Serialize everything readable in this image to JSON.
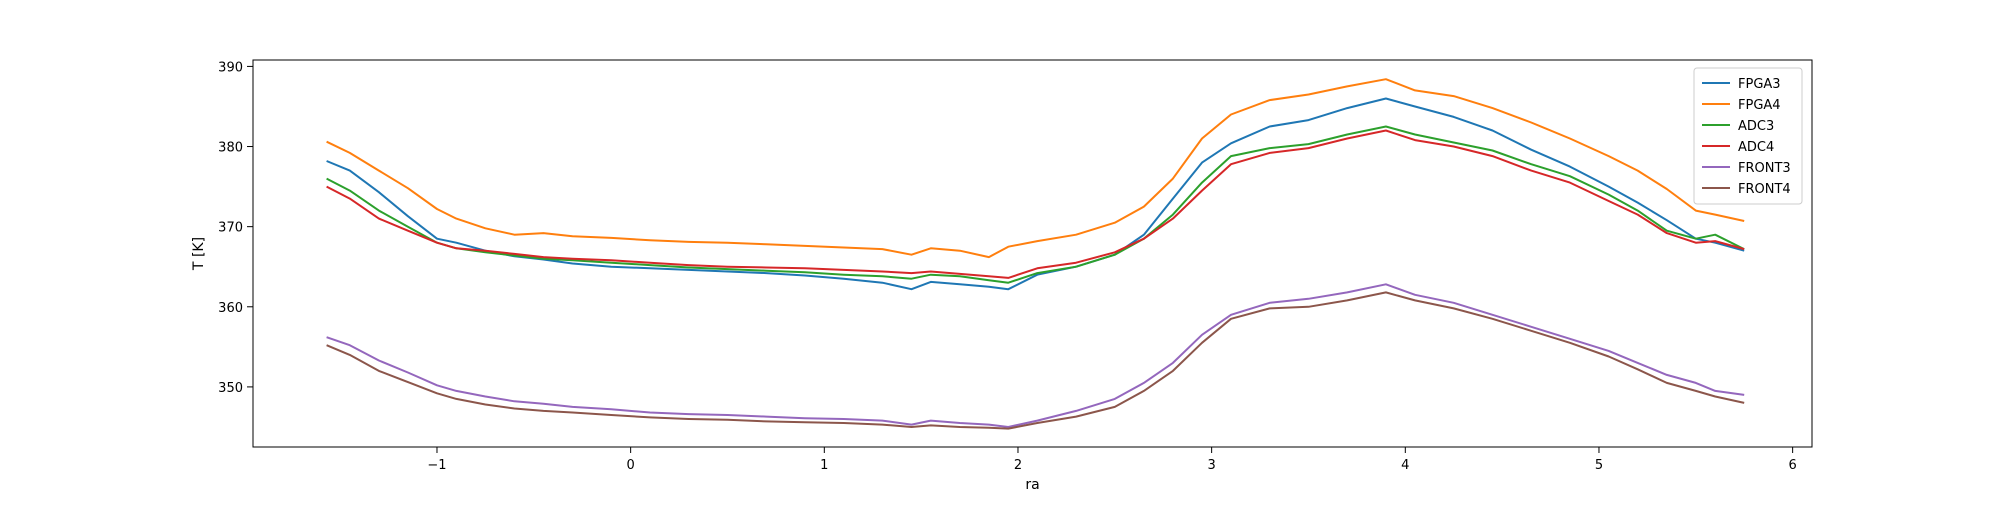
{
  "chart_data": {
    "type": "line",
    "xlabel": "ra",
    "ylabel": "T [K]",
    "xlim": [
      -1.95,
      6.1
    ],
    "ylim": [
      342.5,
      390.8
    ],
    "xticks": [
      -1,
      0,
      1,
      2,
      3,
      4,
      5,
      6
    ],
    "xtick_labels": [
      "−1",
      "0",
      "1",
      "2",
      "3",
      "4",
      "5",
      "6"
    ],
    "yticks": [
      350,
      360,
      370,
      380,
      390
    ],
    "ytick_labels": [
      "350",
      "360",
      "370",
      "380",
      "390"
    ],
    "grid": false,
    "legend": {
      "position": "top-right"
    },
    "series": [
      {
        "name": "FPGA3",
        "color": "#1f77b4",
        "x": [
          -1.57,
          -1.45,
          -1.3,
          -1.15,
          -1.0,
          -0.9,
          -0.75,
          -0.6,
          -0.45,
          -0.3,
          -0.1,
          0.1,
          0.3,
          0.5,
          0.7,
          0.9,
          1.1,
          1.3,
          1.45,
          1.55,
          1.7,
          1.85,
          1.95,
          2.1,
          2.3,
          2.5,
          2.65,
          2.8,
          2.95,
          3.1,
          3.3,
          3.5,
          3.7,
          3.9,
          4.05,
          4.25,
          4.45,
          4.65,
          4.85,
          5.05,
          5.2,
          5.35,
          5.5,
          5.6,
          5.75
        ],
        "y": [
          378.2,
          377.0,
          374.3,
          371.3,
          368.5,
          368.0,
          367.0,
          366.3,
          365.9,
          365.4,
          365.0,
          364.8,
          364.6,
          364.4,
          364.2,
          363.9,
          363.5,
          363.0,
          362.2,
          363.1,
          362.8,
          362.5,
          362.2,
          364.0,
          365.0,
          366.5,
          369.0,
          373.5,
          378.0,
          380.4,
          382.5,
          383.3,
          384.8,
          386.0,
          385.0,
          383.7,
          382.0,
          379.6,
          377.5,
          375.0,
          373.0,
          370.8,
          368.5,
          368.0,
          367.0
        ]
      },
      {
        "name": "FPGA4",
        "color": "#ff7f0e",
        "x": [
          -1.57,
          -1.45,
          -1.3,
          -1.15,
          -1.0,
          -0.9,
          -0.75,
          -0.6,
          -0.45,
          -0.3,
          -0.1,
          0.1,
          0.3,
          0.5,
          0.7,
          0.9,
          1.1,
          1.3,
          1.45,
          1.55,
          1.7,
          1.85,
          1.95,
          2.1,
          2.3,
          2.5,
          2.65,
          2.8,
          2.95,
          3.1,
          3.3,
          3.5,
          3.7,
          3.9,
          4.05,
          4.25,
          4.45,
          4.65,
          4.85,
          5.05,
          5.2,
          5.35,
          5.5,
          5.6,
          5.75
        ],
        "y": [
          380.6,
          379.2,
          377.0,
          374.8,
          372.2,
          371.0,
          369.8,
          369.0,
          369.2,
          368.8,
          368.6,
          368.3,
          368.1,
          368.0,
          367.8,
          367.6,
          367.4,
          367.2,
          366.5,
          367.3,
          367.0,
          366.2,
          367.5,
          368.2,
          369.0,
          370.5,
          372.5,
          376.0,
          381.0,
          384.0,
          385.8,
          386.5,
          387.5,
          388.4,
          387.0,
          386.3,
          384.8,
          383.0,
          381.0,
          378.8,
          377.0,
          374.7,
          372.0,
          371.5,
          370.7
        ]
      },
      {
        "name": "ADC3",
        "color": "#2ca02c",
        "x": [
          -1.57,
          -1.45,
          -1.3,
          -1.15,
          -1.0,
          -0.9,
          -0.75,
          -0.6,
          -0.45,
          -0.3,
          -0.1,
          0.1,
          0.3,
          0.5,
          0.7,
          0.9,
          1.1,
          1.3,
          1.45,
          1.55,
          1.7,
          1.85,
          1.95,
          2.1,
          2.3,
          2.5,
          2.65,
          2.8,
          2.95,
          3.1,
          3.3,
          3.5,
          3.7,
          3.9,
          4.05,
          4.25,
          4.45,
          4.65,
          4.85,
          5.05,
          5.2,
          5.35,
          5.5,
          5.6,
          5.75
        ],
        "y": [
          376.0,
          374.5,
          372.0,
          370.0,
          368.0,
          367.3,
          366.8,
          366.4,
          366.0,
          365.8,
          365.5,
          365.2,
          364.9,
          364.7,
          364.5,
          364.3,
          364.0,
          363.8,
          363.5,
          364.0,
          363.8,
          363.3,
          363.0,
          364.2,
          365.0,
          366.5,
          368.5,
          371.5,
          375.5,
          378.8,
          379.8,
          380.3,
          381.5,
          382.5,
          381.5,
          380.5,
          379.5,
          377.8,
          376.3,
          374.0,
          372.0,
          369.5,
          368.5,
          369.0,
          367.2
        ]
      },
      {
        "name": "ADC4",
        "color": "#d62728",
        "x": [
          -1.57,
          -1.45,
          -1.3,
          -1.15,
          -1.0,
          -0.9,
          -0.75,
          -0.6,
          -0.45,
          -0.3,
          -0.1,
          0.1,
          0.3,
          0.5,
          0.7,
          0.9,
          1.1,
          1.3,
          1.45,
          1.55,
          1.7,
          1.85,
          1.95,
          2.1,
          2.3,
          2.5,
          2.65,
          2.8,
          2.95,
          3.1,
          3.3,
          3.5,
          3.7,
          3.9,
          4.05,
          4.25,
          4.45,
          4.65,
          4.85,
          5.05,
          5.2,
          5.35,
          5.5,
          5.6,
          5.75
        ],
        "y": [
          375.0,
          373.5,
          371.0,
          369.5,
          368.0,
          367.3,
          367.0,
          366.6,
          366.2,
          366.0,
          365.8,
          365.5,
          365.2,
          365.0,
          364.9,
          364.8,
          364.6,
          364.4,
          364.2,
          364.4,
          364.1,
          363.8,
          363.6,
          364.8,
          365.5,
          366.8,
          368.5,
          371.0,
          374.5,
          377.8,
          379.2,
          379.8,
          381.0,
          382.0,
          380.8,
          380.0,
          378.8,
          377.0,
          375.5,
          373.2,
          371.5,
          369.2,
          368.0,
          368.2,
          367.2
        ]
      },
      {
        "name": "FRONT3",
        "color": "#9467bd",
        "x": [
          -1.57,
          -1.45,
          -1.3,
          -1.15,
          -1.0,
          -0.9,
          -0.75,
          -0.6,
          -0.45,
          -0.3,
          -0.1,
          0.1,
          0.3,
          0.5,
          0.7,
          0.9,
          1.1,
          1.3,
          1.45,
          1.55,
          1.7,
          1.85,
          1.95,
          2.1,
          2.3,
          2.5,
          2.65,
          2.8,
          2.95,
          3.1,
          3.3,
          3.5,
          3.7,
          3.9,
          4.05,
          4.25,
          4.45,
          4.65,
          4.85,
          5.05,
          5.2,
          5.35,
          5.5,
          5.6,
          5.75
        ],
        "y": [
          356.2,
          355.2,
          353.3,
          351.8,
          350.2,
          349.5,
          348.8,
          348.2,
          347.9,
          347.5,
          347.2,
          346.8,
          346.6,
          346.5,
          346.3,
          346.1,
          346.0,
          345.8,
          345.3,
          345.8,
          345.5,
          345.3,
          345.0,
          345.8,
          347.0,
          348.5,
          350.5,
          353.0,
          356.5,
          359.0,
          360.5,
          361.0,
          361.8,
          362.8,
          361.5,
          360.5,
          359.0,
          357.5,
          356.0,
          354.5,
          353.0,
          351.5,
          350.5,
          349.5,
          349.0
        ]
      },
      {
        "name": "FRONT4",
        "color": "#8c564b",
        "x": [
          -1.57,
          -1.45,
          -1.3,
          -1.15,
          -1.0,
          -0.9,
          -0.75,
          -0.6,
          -0.45,
          -0.3,
          -0.1,
          0.1,
          0.3,
          0.5,
          0.7,
          0.9,
          1.1,
          1.3,
          1.45,
          1.55,
          1.7,
          1.85,
          1.95,
          2.1,
          2.3,
          2.5,
          2.65,
          2.8,
          2.95,
          3.1,
          3.3,
          3.5,
          3.7,
          3.9,
          4.05,
          4.25,
          4.45,
          4.65,
          4.85,
          5.05,
          5.2,
          5.35,
          5.5,
          5.6,
          5.75
        ],
        "y": [
          355.2,
          354.0,
          352.0,
          350.6,
          349.2,
          348.5,
          347.8,
          347.3,
          347.0,
          346.8,
          346.5,
          346.2,
          346.0,
          345.9,
          345.7,
          345.6,
          345.5,
          345.3,
          345.0,
          345.2,
          345.0,
          344.9,
          344.8,
          345.5,
          346.3,
          347.5,
          349.5,
          352.0,
          355.5,
          358.5,
          359.8,
          360.0,
          360.8,
          361.8,
          360.8,
          359.8,
          358.5,
          357.0,
          355.5,
          353.8,
          352.2,
          350.5,
          349.5,
          348.8,
          348.0
        ]
      }
    ]
  }
}
